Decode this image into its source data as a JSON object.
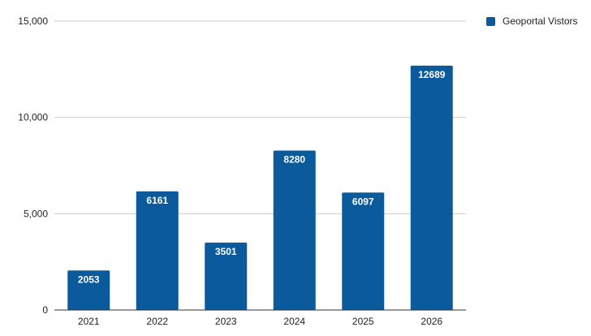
{
  "chart_data": {
    "type": "bar",
    "categories": [
      "2021",
      "2022",
      "2023",
      "2024",
      "2025",
      "2026"
    ],
    "series": [
      {
        "name": "Geoportal Vistors",
        "values": [
          2053,
          6161,
          3501,
          8280,
          6097,
          12689
        ],
        "color": "#0b5a9b"
      }
    ],
    "ylim": [
      0,
      15000
    ],
    "yticks": [
      0,
      5000,
      10000,
      15000
    ],
    "ytick_labels": [
      "0",
      "5,000",
      "10,000",
      "15,000"
    ],
    "grid": true,
    "legend_position": "top-right",
    "data_labels": true
  }
}
